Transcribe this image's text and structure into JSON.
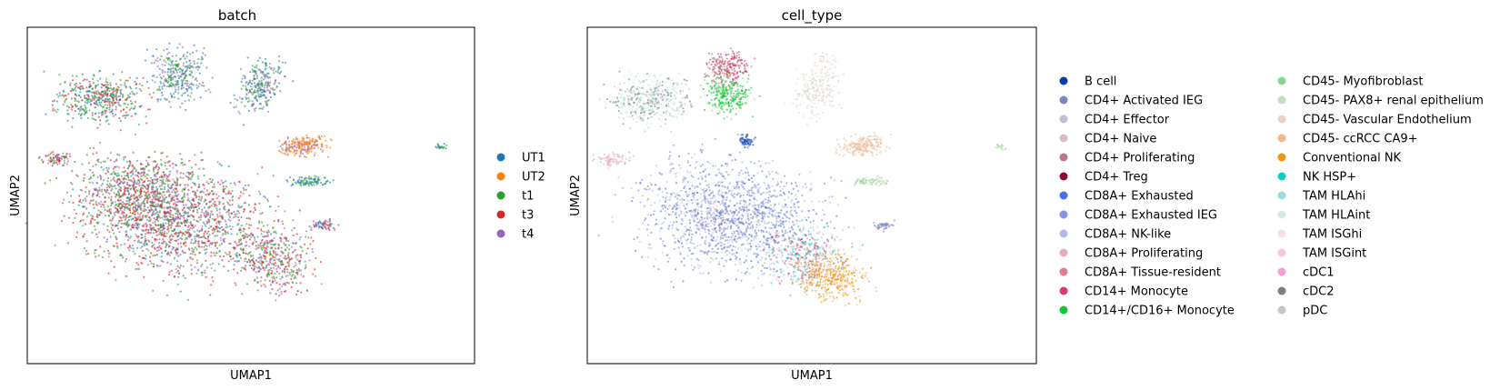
{
  "chart_data": [
    {
      "type": "scatter",
      "title": "batch",
      "xlabel": "UMAP1",
      "ylabel": "UMAP2",
      "grid": false,
      "legend": "right",
      "series": [
        {
          "name": "UT1",
          "color": "#1f77b4"
        },
        {
          "name": "UT2",
          "color": "#ff7f0e"
        },
        {
          "name": "t1",
          "color": "#2ca02c"
        },
        {
          "name": "t3",
          "color": "#d62728"
        },
        {
          "name": "t4",
          "color": "#9467bd"
        }
      ]
    },
    {
      "type": "scatter",
      "title": "cell_type",
      "xlabel": "UMAP1",
      "ylabel": "UMAP2",
      "grid": false,
      "legend": "right",
      "series": [
        {
          "name": "B cell",
          "color": "#023fa5"
        },
        {
          "name": "CD4+ Activated IEG",
          "color": "#7d87b9"
        },
        {
          "name": "CD4+ Effector",
          "color": "#bec1d4"
        },
        {
          "name": "CD4+ Naive",
          "color": "#d6bcc0"
        },
        {
          "name": "CD4+ Proliferating",
          "color": "#bb7784"
        },
        {
          "name": "CD4+ Treg",
          "color": "#8e063b"
        },
        {
          "name": "CD8A+ Exhausted",
          "color": "#4a6fe3"
        },
        {
          "name": "CD8A+ Exhausted IEG",
          "color": "#8595e1"
        },
        {
          "name": "CD8A+ NK-like",
          "color": "#b5bbe3"
        },
        {
          "name": "CD8A+ Proliferating",
          "color": "#e6afb9"
        },
        {
          "name": "CD8A+ Tissue-resident",
          "color": "#e07b91"
        },
        {
          "name": "CD14+ Monocyte",
          "color": "#d33f6a"
        },
        {
          "name": "CD14+/CD16+ Monocyte",
          "color": "#11c638"
        },
        {
          "name": "CD45- Myofibroblast",
          "color": "#8dd593"
        },
        {
          "name": "CD45- PAX8+ renal epithelium",
          "color": "#c6dec7"
        },
        {
          "name": "CD45- Vascular Endothelium",
          "color": "#ead3c6"
        },
        {
          "name": "CD45- ccRCC CA9+",
          "color": "#f0b98d"
        },
        {
          "name": "Conventional NK",
          "color": "#ef9708"
        },
        {
          "name": "NK HSP+",
          "color": "#0fcfc0"
        },
        {
          "name": "TAM HLAhi",
          "color": "#9cded6"
        },
        {
          "name": "TAM HLAint",
          "color": "#d5eae7"
        },
        {
          "name": "TAM ISGhi",
          "color": "#f3e1eb"
        },
        {
          "name": "TAM ISGint",
          "color": "#f6c4e1"
        },
        {
          "name": "cDC1",
          "color": "#f79cd4"
        },
        {
          "name": "cDC2",
          "color": "#7f7f7f"
        },
        {
          "name": "pDC",
          "color": "#c7c7c7"
        }
      ]
    }
  ]
}
